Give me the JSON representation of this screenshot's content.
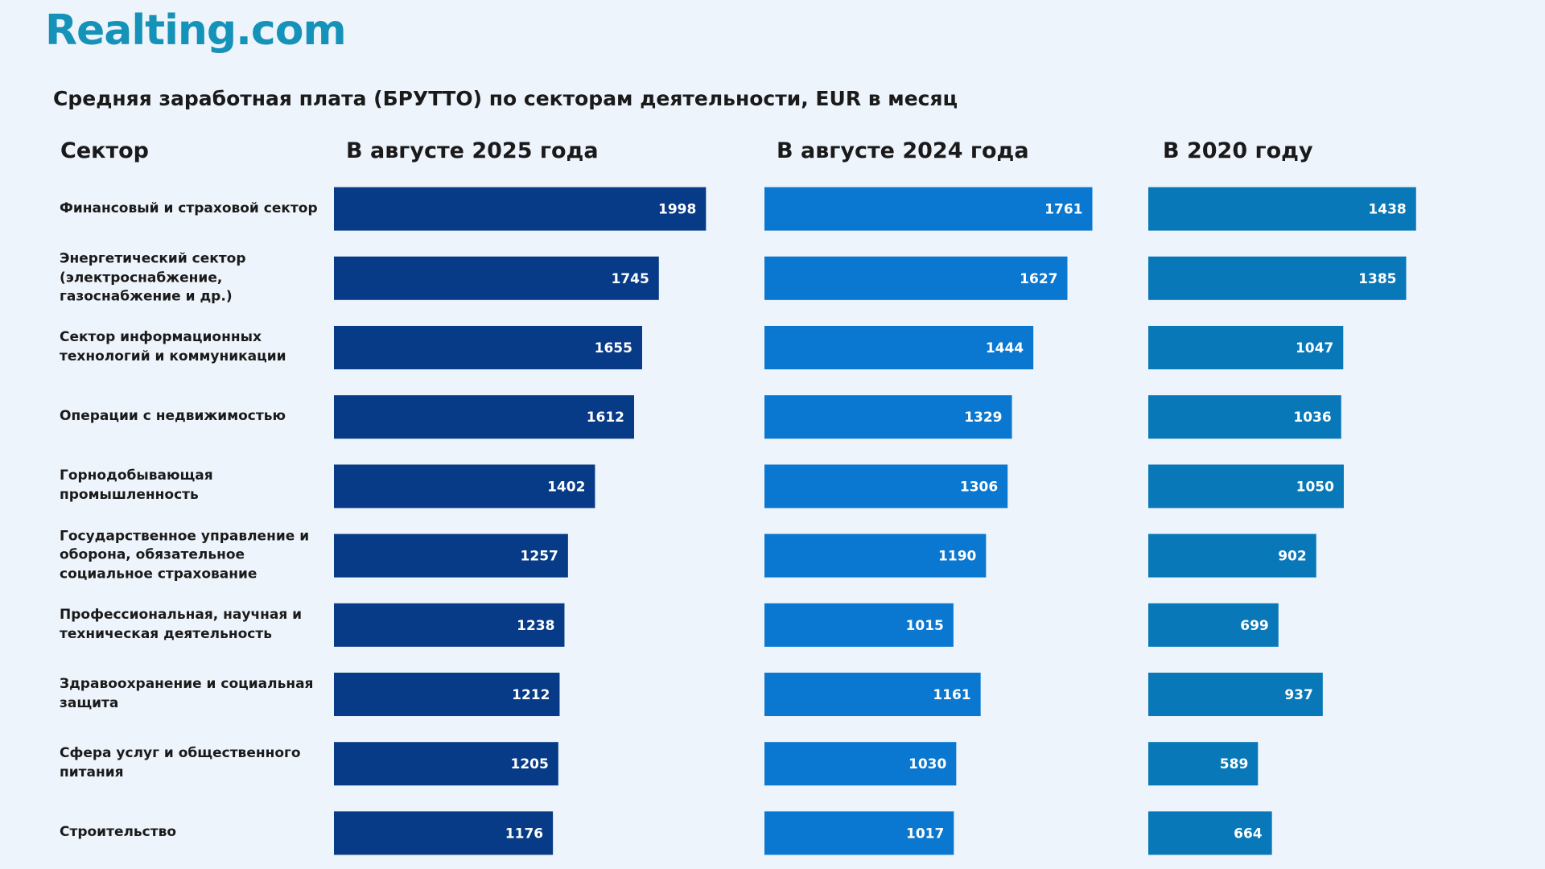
{
  "brand": "Realting.com",
  "chart_data": {
    "type": "bar",
    "orientation": "horizontal",
    "title": "Средняя заработная плата (БРУТТО) по секторам деятельности, EUR в месяц",
    "category_header": "Сектор",
    "categories": [
      "Финансовый и страховой сектор",
      "Энергетический сектор (электроснабжение, газоснабжение и др.)",
      "Сектор информационных технологий и коммуникации",
      "Операции с недвижимостью",
      "Горнодобывающая промышленность",
      "Государственное управление и оборона, обязательное социальное страхование",
      "Профессиональная, научная и техническая деятельность",
      "Здравоохранение и социальная защита",
      "Сфера услуг и общественного питания",
      "Строительство"
    ],
    "series": [
      {
        "name": "В августе 2025 года",
        "color": "#083b87",
        "values": [
          1998,
          1745,
          1655,
          1612,
          1402,
          1257,
          1238,
          1212,
          1205,
          1176
        ]
      },
      {
        "name": "В августе 2024 года",
        "color": "#0a77d0",
        "values": [
          1761,
          1627,
          1444,
          1329,
          1306,
          1190,
          1015,
          1161,
          1030,
          1017
        ]
      },
      {
        "name": "В 2020 году",
        "color": "#0878b8",
        "values": [
          1438,
          1385,
          1047,
          1036,
          1050,
          902,
          699,
          937,
          589,
          664
        ]
      }
    ]
  }
}
